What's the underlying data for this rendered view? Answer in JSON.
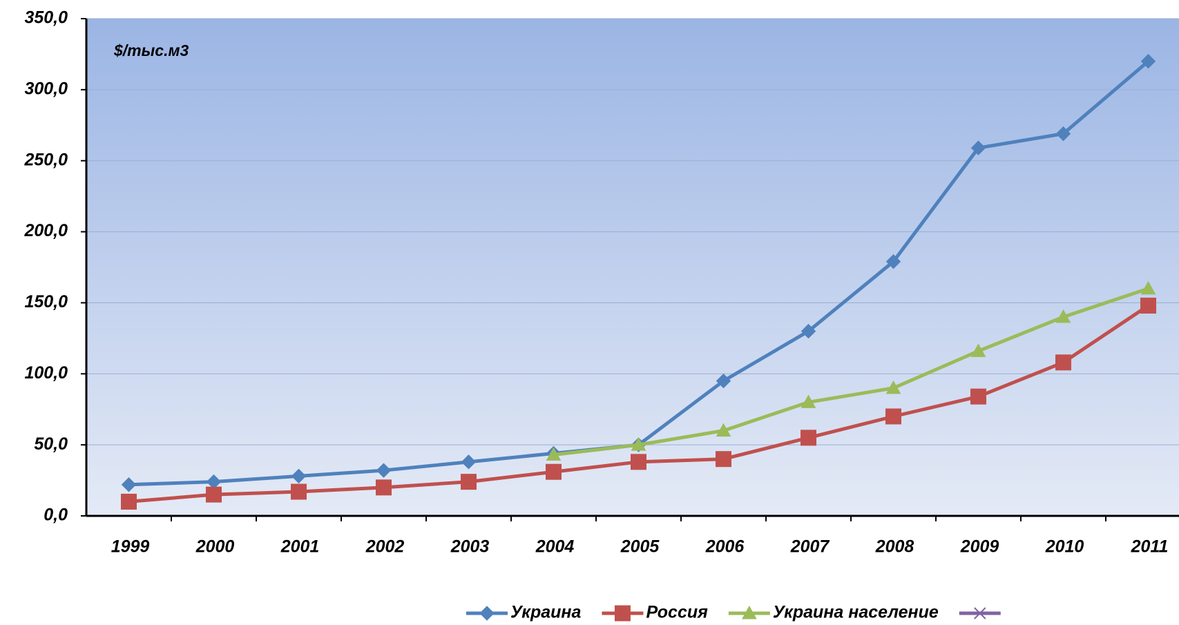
{
  "chart_data": {
    "type": "line",
    "annotation": "$/тыс.м3",
    "categories": [
      "1999",
      "2000",
      "2001",
      "2002",
      "2003",
      "2004",
      "2005",
      "2006",
      "2007",
      "2008",
      "2009",
      "2010",
      "2011"
    ],
    "series": [
      {
        "name": "Украина",
        "color": "#4f81bd",
        "marker": "diamond",
        "values": [
          22,
          24,
          28,
          32,
          38,
          44,
          50,
          95,
          130,
          179,
          259,
          269,
          320
        ]
      },
      {
        "name": "Россия",
        "color": "#c0504d",
        "marker": "square",
        "values": [
          10,
          15,
          17,
          20,
          24,
          31,
          38,
          40,
          55,
          70,
          84,
          108,
          148
        ]
      },
      {
        "name": "Украина население",
        "color": "#9bbb59",
        "marker": "triangle",
        "values": [
          null,
          null,
          null,
          null,
          null,
          43,
          50,
          60,
          80,
          90,
          116,
          140,
          160
        ]
      },
      {
        "color": "#8064a2",
        "marker": "x",
        "values": [
          null,
          null,
          null,
          null,
          null,
          null,
          null,
          null,
          null,
          null,
          null,
          null,
          null
        ]
      }
    ],
    "ylim": [
      0,
      350
    ],
    "yticks": [
      {
        "value": 0,
        "label": "0,0"
      },
      {
        "value": 50,
        "label": "50,0"
      },
      {
        "value": 100,
        "label": "100,0"
      },
      {
        "value": 150,
        "label": "150,0"
      },
      {
        "value": 200,
        "label": "200,0"
      },
      {
        "value": 250,
        "label": "250,0"
      },
      {
        "value": 300,
        "label": "300,0"
      },
      {
        "value": 350,
        "label": "350,0"
      }
    ],
    "grid": true,
    "legend": "bottom"
  }
}
